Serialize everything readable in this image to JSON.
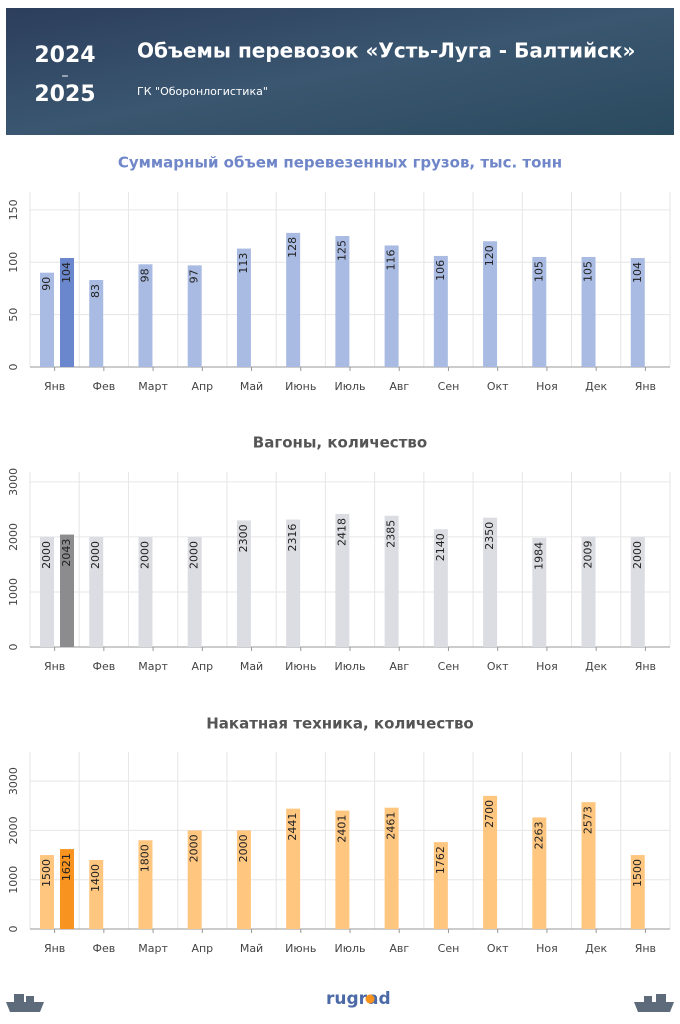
{
  "header": {
    "year_start": "2024",
    "dash": "–",
    "year_end": "2025",
    "title": "Объемы перевозок «Усть-Луга - Балтийск»",
    "subtitle": "ГК \"Оборонлогистика\""
  },
  "footer": {
    "logo": "rugrad"
  },
  "chart_data": [
    {
      "type": "bar",
      "title": "Суммарный объем перевезенных грузов, тыс. тонн",
      "title_color": "#6f86c9",
      "categories": [
        "Янв",
        "Фев",
        "Март",
        "Апр",
        "Май",
        "Июнь",
        "Июль",
        "Авг",
        "Сен",
        "Окт",
        "Ноя",
        "Дек",
        "Янв"
      ],
      "series": [
        {
          "color": "#a9bbe2",
          "values": [
            90,
            83,
            98,
            97,
            113,
            128,
            125,
            116,
            106,
            120,
            105,
            105,
            104
          ]
        },
        {
          "color": "#6a86cc",
          "values": [
            104,
            null,
            null,
            null,
            null,
            null,
            null,
            null,
            null,
            null,
            null,
            null,
            null
          ]
        }
      ],
      "ylim": [
        0,
        167
      ],
      "yticks": [
        0,
        50,
        100,
        150
      ],
      "grid": true
    },
    {
      "type": "bar",
      "title": "Вагоны, количество",
      "title_color": "#555555",
      "categories": [
        "Янв",
        "Фев",
        "Март",
        "Апр",
        "Май",
        "Июнь",
        "Июль",
        "Авг",
        "Сен",
        "Окт",
        "Ноя",
        "Дек",
        "Янв"
      ],
      "series": [
        {
          "color": "#dcdde3",
          "values": [
            2000,
            2000,
            2000,
            2000,
            2300,
            2316,
            2418,
            2385,
            2140,
            2350,
            1984,
            2009,
            2000
          ]
        },
        {
          "color": "#8c8c8e",
          "values": [
            2043,
            null,
            null,
            null,
            null,
            null,
            null,
            null,
            null,
            null,
            null,
            null,
            null
          ]
        }
      ],
      "ylim": [
        0,
        3180
      ],
      "yticks": [
        0,
        1000,
        2000,
        3000
      ],
      "grid": true
    },
    {
      "type": "bar",
      "title": "Накатная техника, количество",
      "title_color": "#555555",
      "categories": [
        "Янв",
        "Фев",
        "Март",
        "Апр",
        "Май",
        "Июнь",
        "Июль",
        "Авг",
        "Сен",
        "Окт",
        "Ноя",
        "Дек",
        "Янв"
      ],
      "series": [
        {
          "color": "#ffc680",
          "values": [
            1500,
            1400,
            1800,
            2000,
            2000,
            2441,
            2401,
            2461,
            1762,
            2700,
            2263,
            2573,
            1500
          ]
        },
        {
          "color": "#f7931e",
          "values": [
            1621,
            null,
            null,
            null,
            null,
            null,
            null,
            null,
            null,
            null,
            null,
            null,
            null
          ]
        }
      ],
      "ylim": [
        0,
        3590
      ],
      "yticks": [
        0,
        1000,
        2000,
        3000
      ],
      "grid": true
    }
  ]
}
